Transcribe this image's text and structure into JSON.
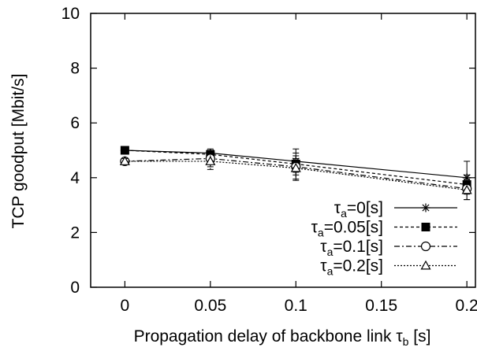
{
  "chart_data": {
    "type": "line",
    "title": "",
    "xlabel_main": "Propagation delay of backbone link ",
    "xlabel_symbol": "τ",
    "xlabel_sub": "b",
    "xlabel_unit": " [s]",
    "ylabel": "TCP goodput [Mbit/s]",
    "xlim": [
      -0.02,
      0.205
    ],
    "ylim": [
      0,
      10
    ],
    "x_ticks": [
      0,
      0.05,
      0.1,
      0.15,
      0.2
    ],
    "x_tick_labels": [
      "0",
      "0.05",
      "0.1",
      "0.15",
      "0.2"
    ],
    "y_ticks": [
      0,
      2,
      4,
      6,
      8,
      10
    ],
    "y_tick_labels": [
      "0",
      "2",
      "4",
      "6",
      "8",
      "10"
    ],
    "grid": false,
    "legend_position": "bottom-right",
    "x": [
      0,
      0.05,
      0.1,
      0.2
    ],
    "series": [
      {
        "legend_symbol": "τ",
        "legend_sub": "a",
        "legend_rest": "=0[s]",
        "marker": "star",
        "dash": "",
        "color": "#000000",
        "values": [
          5.0,
          4.9,
          4.6,
          4.0
        ],
        "err_low": [
          4.9,
          4.75,
          4.2,
          3.7
        ],
        "err_high": [
          5.1,
          5.05,
          5.05,
          4.6
        ]
      },
      {
        "legend_symbol": "τ",
        "legend_sub": "a",
        "legend_rest": "=0.05[s]",
        "marker": "filled-square",
        "dash": "4,3",
        "color": "#000000",
        "values": [
          5.0,
          4.85,
          4.5,
          3.75
        ],
        "err_low": [
          4.9,
          4.7,
          4.1,
          3.4
        ],
        "err_high": [
          5.1,
          5.0,
          4.9,
          4.1
        ]
      },
      {
        "legend_symbol": "τ",
        "legend_sub": "a",
        "legend_rest": "=0.1[s]",
        "marker": "open-circle",
        "dash": "7,3,2,3",
        "color": "#000000",
        "values": [
          4.6,
          4.7,
          4.4,
          3.6
        ],
        "err_low": [
          4.5,
          4.4,
          3.95,
          3.2
        ],
        "err_high": [
          4.7,
          5.0,
          4.8,
          3.95
        ]
      },
      {
        "legend_symbol": "τ",
        "legend_sub": "a",
        "legend_rest": "=0.2[s]",
        "marker": "open-triangle",
        "dash": "2,2",
        "color": "#000000",
        "values": [
          4.6,
          4.6,
          4.35,
          3.55
        ],
        "err_low": [
          4.5,
          4.3,
          3.9,
          3.2
        ],
        "err_high": [
          4.7,
          4.9,
          4.7,
          3.9
        ]
      }
    ]
  }
}
